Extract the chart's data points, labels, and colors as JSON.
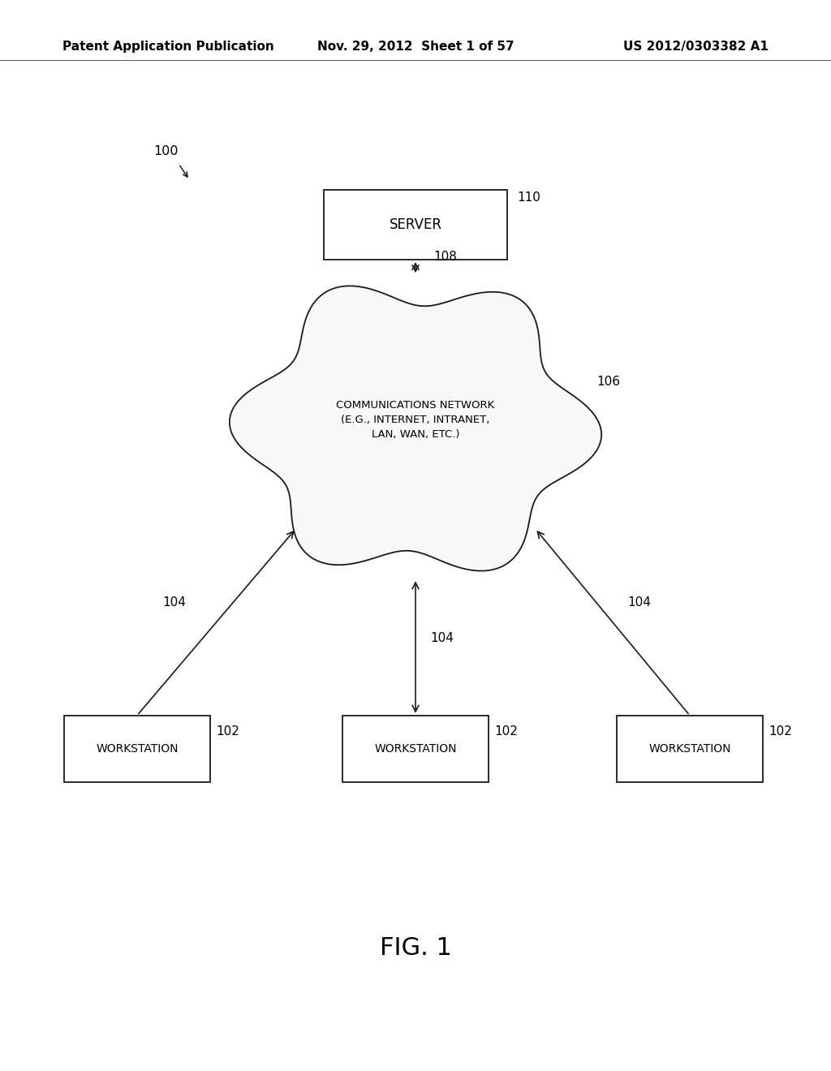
{
  "background_color": "#ffffff",
  "header_left": "Patent Application Publication",
  "header_center": "Nov. 29, 2012  Sheet 1 of 57",
  "header_right": "US 2012/0303382 A1",
  "header_fontsize": 11,
  "fig_label": "FIG. 1",
  "fig_label_fontsize": 22,
  "diagram_label": "100",
  "server_label": "SERVER",
  "server_ref": "110",
  "network_label": "COMMUNICATIONS NETWORK\n(E.G., INTERNET, INTRANET,\nLAN, WAN, ETC.)",
  "network_ref": "106",
  "arrow_ref_server_net": "108",
  "workstation_label": "WORKSTATION",
  "workstation_refs": [
    "102",
    "102",
    "102"
  ],
  "conn_refs": [
    "104",
    "104",
    "104"
  ],
  "text_color": "#000000",
  "box_edge_color": "#1a1a1a",
  "box_face_color": "#ffffff",
  "line_color": "#1a1a1a"
}
